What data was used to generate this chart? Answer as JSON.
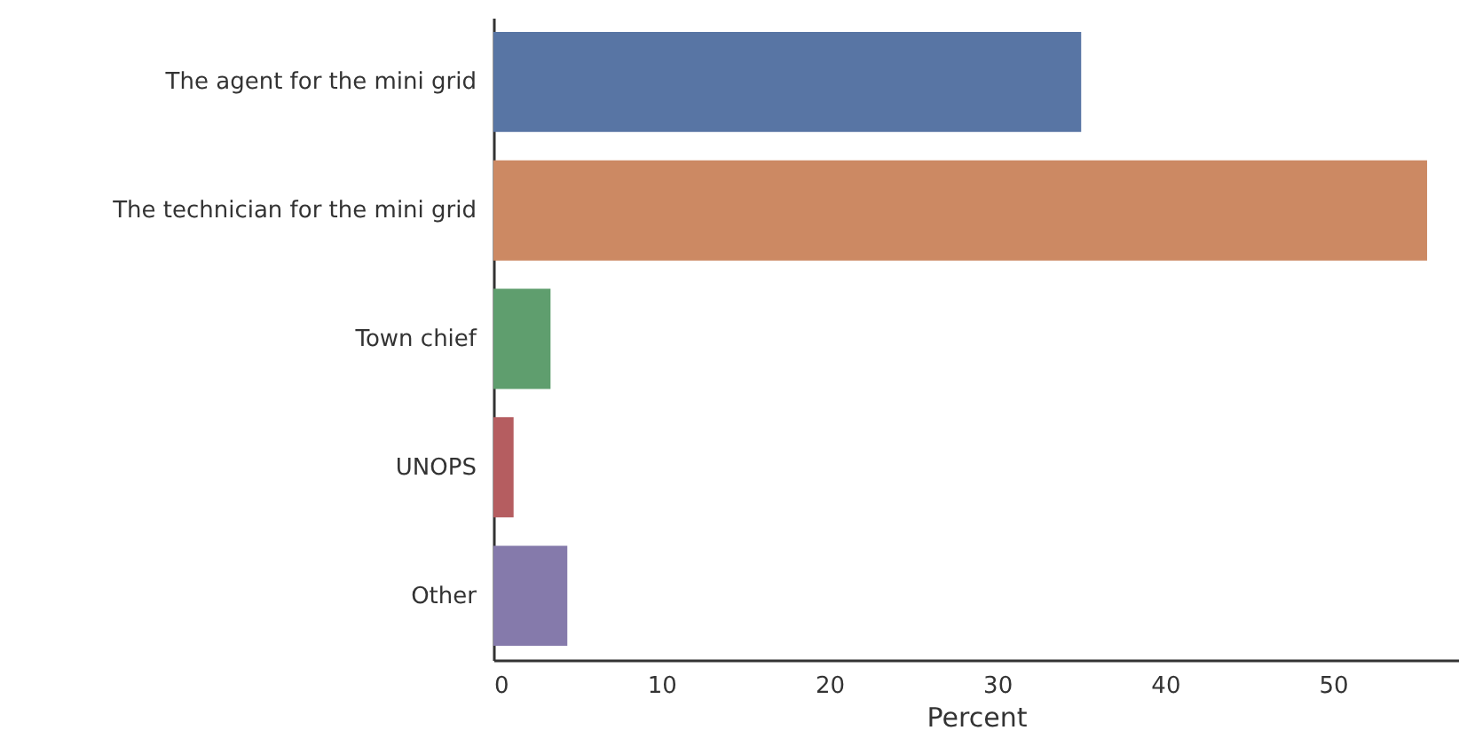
{
  "chart_data": {
    "type": "bar",
    "orientation": "horizontal",
    "xlabel": "Percent",
    "categories": [
      "The agent for the mini grid",
      "The technician for the mini grid",
      "Town chief",
      "UNOPS",
      "Other"
    ],
    "values": [
      35.0,
      55.6,
      3.4,
      1.2,
      4.4
    ],
    "colors": [
      "#5875a4",
      "#cc8963",
      "#5f9e6e",
      "#b55d60",
      "#857aab"
    ],
    "xlim": [
      0,
      57.5
    ],
    "xticks": [
      0,
      10,
      20,
      30,
      40,
      50
    ],
    "grid": false
  }
}
